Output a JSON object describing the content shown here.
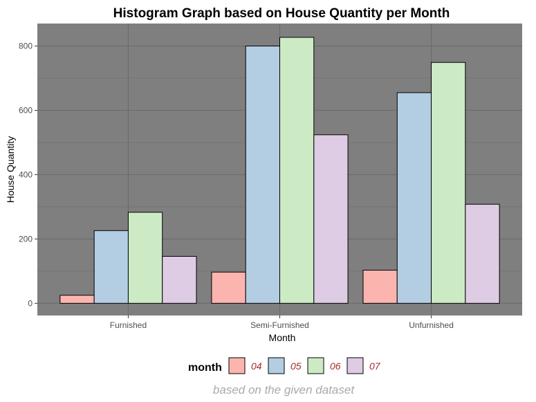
{
  "chart_data": {
    "type": "bar",
    "title": "Histogram Graph based on House Quantity per Month",
    "xlabel": "Month",
    "ylabel": "House Quantity",
    "caption": "based on the given dataset",
    "categories": [
      "Furnished",
      "Semi-Furnished",
      "Unfurnished"
    ],
    "ylim": [
      -38,
      870
    ],
    "yticks": [
      0,
      200,
      400,
      600,
      800
    ],
    "grid": true,
    "legend": {
      "title": "month",
      "position": "bottom"
    },
    "series": [
      {
        "name": "04",
        "color": "#fbb4ae",
        "values": [
          25,
          97,
          103
        ]
      },
      {
        "name": "05",
        "color": "#b3cde3",
        "values": [
          226,
          800,
          655
        ]
      },
      {
        "name": "06",
        "color": "#ccebc5",
        "values": [
          283,
          827,
          749
        ]
      },
      {
        "name": "07",
        "color": "#decbe4",
        "values": [
          146,
          524,
          308
        ]
      }
    ],
    "panel_color": "#7f7f7f",
    "grid_color": "#6b6b6b"
  }
}
